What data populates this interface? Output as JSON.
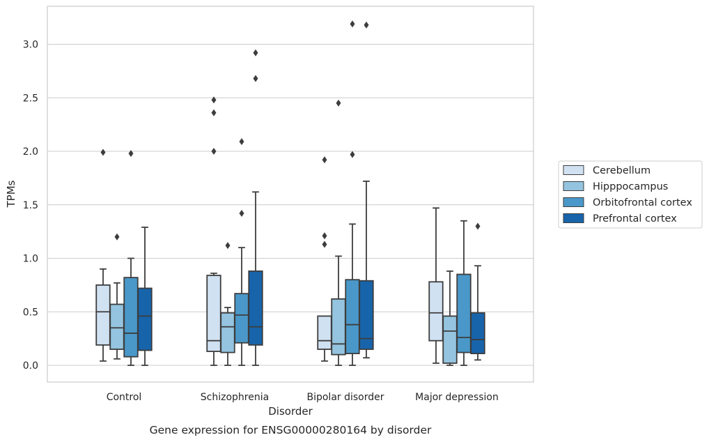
{
  "chart_data": {
    "type": "box",
    "title": "",
    "caption": "Gene expression for ENSG00000280164 by disorder",
    "xlabel": "Disorder",
    "ylabel": "TPMs",
    "ylim": [
      -0.15,
      3.35
    ],
    "yticks": [
      0.0,
      0.5,
      1.0,
      1.5,
      2.0,
      2.5,
      3.0
    ],
    "ytick_labels": [
      "0.0",
      "0.5",
      "1.0",
      "1.5",
      "2.0",
      "2.5",
      "3.0"
    ],
    "grid": "horizontal",
    "legend_position": "right",
    "categories": [
      "Control",
      "Schizophrenia",
      "Bipolar disorder",
      "Major depression"
    ],
    "series": [
      {
        "name": "Cerebellum",
        "color": "#d0e1f2",
        "boxes": [
          {
            "whislo": 0.04,
            "q1": 0.19,
            "med": 0.5,
            "q3": 0.75,
            "whishi": 0.9,
            "fliers": [
              1.99
            ]
          },
          {
            "whislo": 0.0,
            "q1": 0.13,
            "med": 0.23,
            "q3": 0.84,
            "whishi": 0.86,
            "fliers": [
              2.0,
              2.36,
              2.48
            ]
          },
          {
            "whislo": 0.04,
            "q1": 0.15,
            "med": 0.23,
            "q3": 0.46,
            "whishi": 0.46,
            "fliers": [
              1.13,
              1.21,
              1.92
            ]
          },
          {
            "whislo": 0.02,
            "q1": 0.23,
            "med": 0.49,
            "q3": 0.78,
            "whishi": 1.47,
            "fliers": []
          }
        ]
      },
      {
        "name": "Hipppocampus",
        "color": "#94c4df",
        "boxes": [
          {
            "whislo": 0.06,
            "q1": 0.15,
            "med": 0.35,
            "q3": 0.57,
            "whishi": 0.77,
            "fliers": [
              1.2
            ]
          },
          {
            "whislo": 0.0,
            "q1": 0.12,
            "med": 0.36,
            "q3": 0.49,
            "whishi": 0.54,
            "fliers": [
              1.12
            ]
          },
          {
            "whislo": 0.0,
            "q1": 0.1,
            "med": 0.2,
            "q3": 0.62,
            "whishi": 1.02,
            "fliers": [
              2.45
            ]
          },
          {
            "whislo": 0.0,
            "q1": 0.02,
            "med": 0.32,
            "q3": 0.46,
            "whishi": 0.88,
            "fliers": []
          }
        ]
      },
      {
        "name": "Orbitofrontal cortex",
        "color": "#4a98c9",
        "boxes": [
          {
            "whislo": 0.0,
            "q1": 0.08,
            "med": 0.3,
            "q3": 0.82,
            "whishi": 1.0,
            "fliers": [
              1.98
            ]
          },
          {
            "whislo": 0.0,
            "q1": 0.21,
            "med": 0.47,
            "q3": 0.67,
            "whishi": 1.1,
            "fliers": [
              1.42,
              2.09
            ]
          },
          {
            "whislo": 0.0,
            "q1": 0.11,
            "med": 0.38,
            "q3": 0.8,
            "whishi": 1.32,
            "fliers": [
              1.97,
              3.19
            ]
          },
          {
            "whislo": 0.0,
            "q1": 0.12,
            "med": 0.26,
            "q3": 0.85,
            "whishi": 1.35,
            "fliers": []
          }
        ]
      },
      {
        "name": "Prefrontal cortex",
        "color": "#1764ab",
        "boxes": [
          {
            "whislo": 0.0,
            "q1": 0.14,
            "med": 0.46,
            "q3": 0.72,
            "whishi": 1.29,
            "fliers": []
          },
          {
            "whislo": 0.0,
            "q1": 0.19,
            "med": 0.36,
            "q3": 0.88,
            "whishi": 1.62,
            "fliers": [
              2.68,
              2.92
            ]
          },
          {
            "whislo": 0.07,
            "q1": 0.15,
            "med": 0.25,
            "q3": 0.79,
            "whishi": 1.72,
            "fliers": [
              3.18
            ]
          },
          {
            "whislo": 0.05,
            "q1": 0.11,
            "med": 0.24,
            "q3": 0.49,
            "whishi": 0.93,
            "fliers": [
              1.3
            ]
          }
        ]
      }
    ]
  }
}
